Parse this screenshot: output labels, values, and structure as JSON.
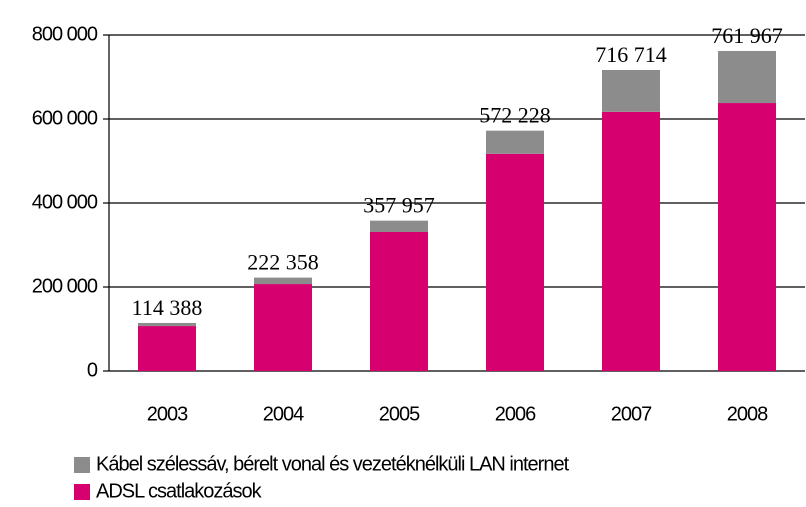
{
  "chart_data": {
    "type": "stacked_bar",
    "categories": [
      "2003",
      "2004",
      "2005",
      "2006",
      "2007",
      "2008"
    ],
    "series": [
      {
        "name": "ADSL csatlakozások",
        "color": "#d6006f",
        "values": [
          107000,
          207000,
          331000,
          517000,
          617000,
          638000
        ]
      },
      {
        "name": "Kábel szélessáv, bérelt vonal és vezetéknélküli LAN internet",
        "color": "#8c8c8c",
        "values": [
          7388,
          15358,
          26957,
          55228,
          99714,
          123967
        ]
      }
    ],
    "totals": [
      114388,
      222358,
      357957,
      572228,
      716714,
      761967
    ],
    "total_labels": [
      "114 388",
      "222 358",
      "357 957",
      "572 228",
      "716 714",
      "761 967"
    ],
    "ylim": [
      0,
      800000
    ],
    "yticks": [
      0,
      {
        "value": 200000,
        "label": "200 000"
      },
      {
        "value": 400000,
        "label": "400 000"
      },
      {
        "value": 600000,
        "label": "600 000"
      },
      {
        "value": 800000,
        "label": "800 000"
      }
    ],
    "grid": true
  }
}
